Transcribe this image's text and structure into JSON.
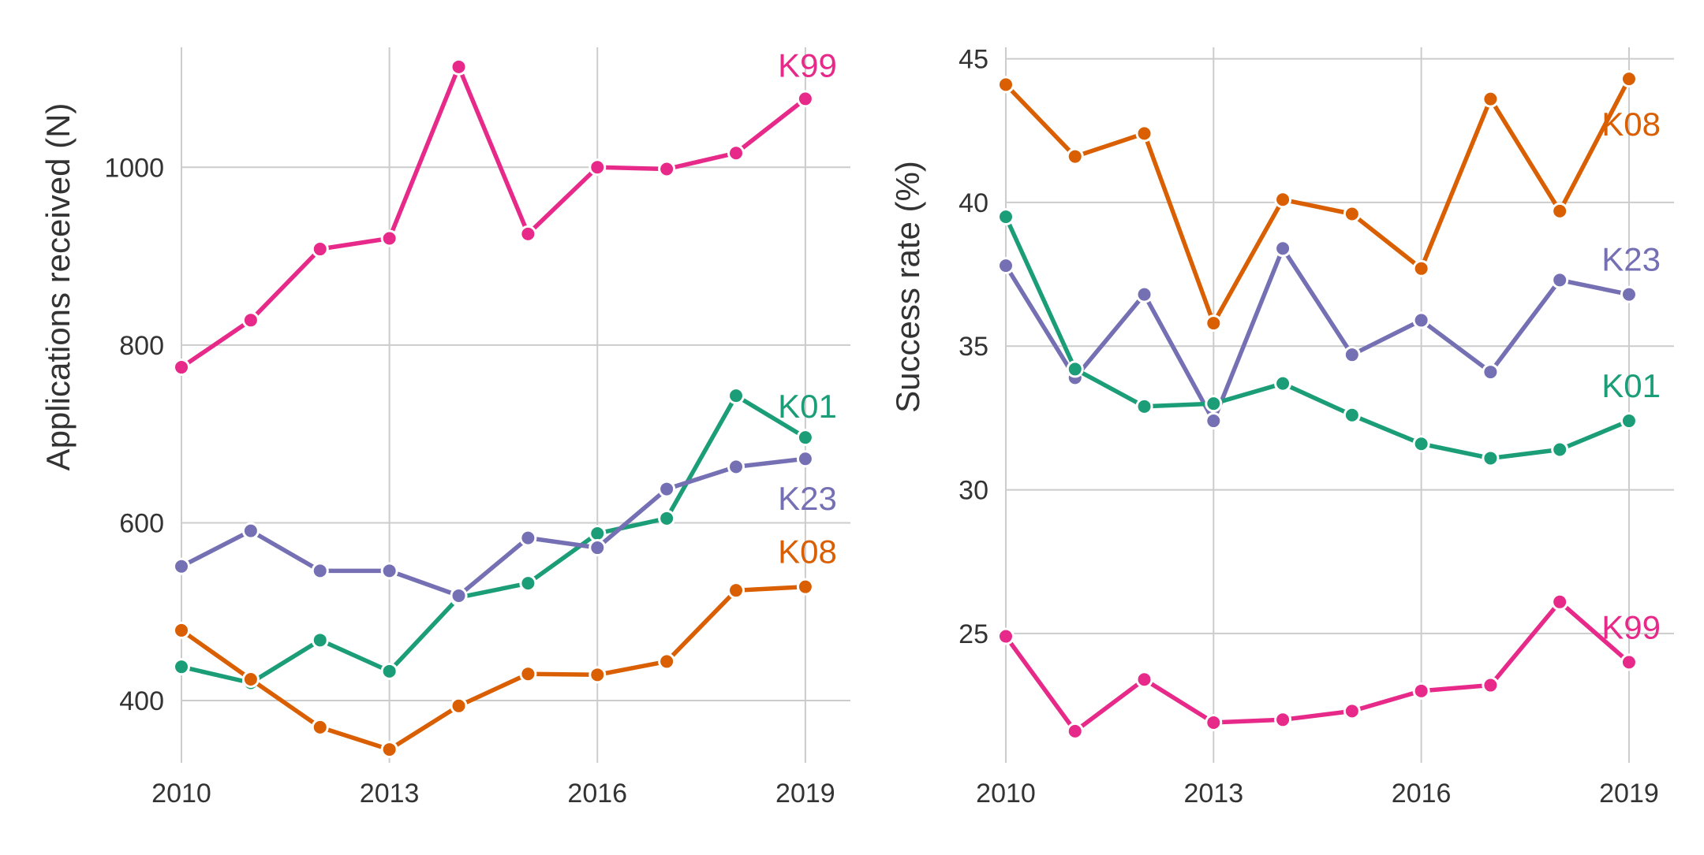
{
  "chart_data": [
    {
      "type": "line",
      "title": "",
      "xlabel": "",
      "ylabel": "Applications received (N)",
      "x": [
        2010,
        2011,
        2012,
        2013,
        2014,
        2015,
        2016,
        2017,
        2018,
        2019
      ],
      "xticks": [
        "2010",
        "2013",
        "2016",
        "2019"
      ],
      "yticks": [
        "400",
        "600",
        "800",
        "1000"
      ],
      "xlim": [
        2010,
        2019.65
      ],
      "ylim": [
        330,
        1135
      ],
      "grid": true,
      "legend": "direct labels at series ends",
      "series": [
        {
          "name": "K99",
          "color": "#e7298a",
          "values": [
            775,
            828,
            908,
            920,
            1113,
            925,
            1000,
            998,
            1016,
            1077
          ]
        },
        {
          "name": "K01",
          "color": "#1b9e77",
          "values": [
            438,
            420,
            468,
            433,
            516,
            532,
            588,
            605,
            743,
            696
          ]
        },
        {
          "name": "K23",
          "color": "#7570b3",
          "values": [
            551,
            591,
            546,
            546,
            518,
            583,
            572,
            638,
            663,
            672
          ]
        },
        {
          "name": "K08",
          "color": "#d95f02",
          "values": [
            479,
            424,
            370,
            345,
            394,
            430,
            429,
            444,
            524,
            528
          ]
        }
      ]
    },
    {
      "type": "line",
      "title": "",
      "xlabel": "",
      "ylabel": "Success rate (%)",
      "x": [
        2010,
        2011,
        2012,
        2013,
        2014,
        2015,
        2016,
        2017,
        2018,
        2019
      ],
      "xticks": [
        "2010",
        "2013",
        "2016",
        "2019"
      ],
      "yticks": [
        "25",
        "30",
        "35",
        "40",
        "45"
      ],
      "xlim": [
        2010,
        2019.65
      ],
      "ylim": [
        20.5,
        45.4
      ],
      "grid": true,
      "legend": "direct labels at series ends",
      "series": [
        {
          "name": "K08",
          "color": "#d95f02",
          "values": [
            44.1,
            41.6,
            42.4,
            35.8,
            40.1,
            39.6,
            37.7,
            43.6,
            39.7,
            44.3
          ]
        },
        {
          "name": "K23",
          "color": "#7570b3",
          "values": [
            37.8,
            33.9,
            36.8,
            32.4,
            38.4,
            34.7,
            35.9,
            34.1,
            37.3,
            36.8
          ]
        },
        {
          "name": "K01",
          "color": "#1b9e77",
          "values": [
            39.5,
            34.2,
            32.9,
            33.0,
            33.7,
            32.6,
            31.6,
            31.1,
            31.4,
            32.4
          ]
        },
        {
          "name": "K99",
          "color": "#e7298a",
          "values": [
            24.9,
            21.6,
            23.4,
            21.9,
            22.0,
            22.3,
            23.0,
            23.2,
            26.1,
            24.0
          ]
        }
      ]
    }
  ]
}
